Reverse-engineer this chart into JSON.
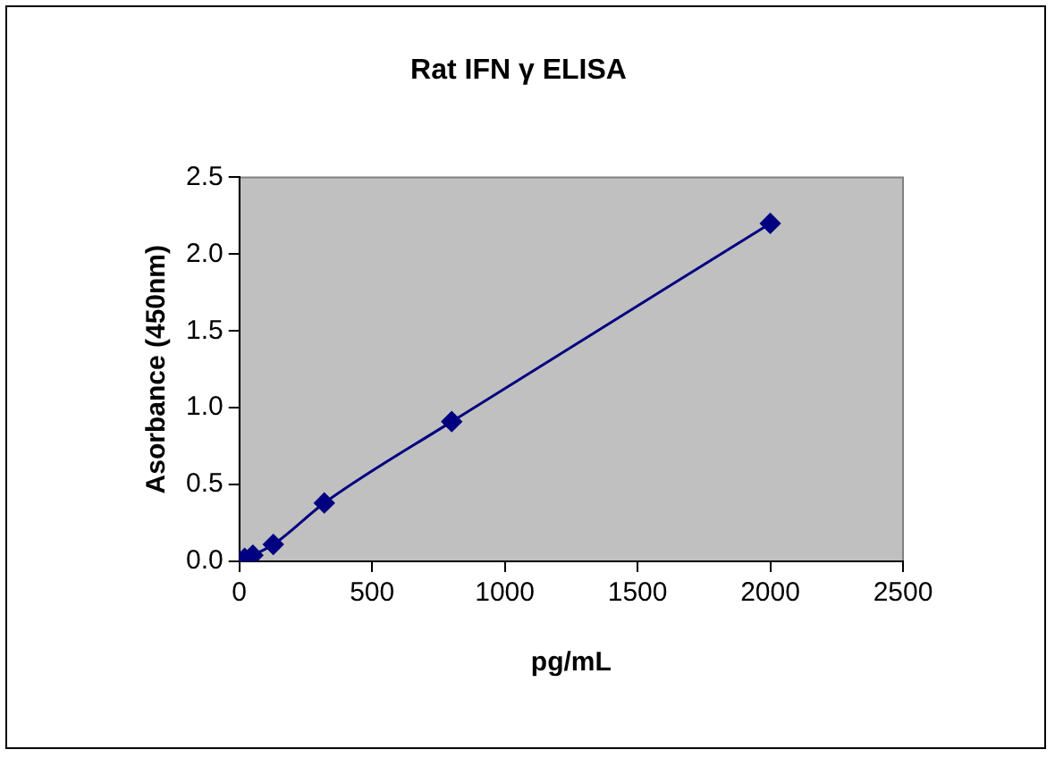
{
  "chart_data": {
    "type": "line",
    "title": "Rat IFN γ ELISA",
    "xlabel": "pg/mL",
    "ylabel": "Asorbance (450nm)",
    "x": [
      0,
      8,
      20,
      51,
      128,
      320,
      800,
      2000
    ],
    "series": [
      {
        "color": "#000080",
        "values": [
          0,
          null,
          0.02,
          0.04,
          0.11,
          0.38,
          0.91,
          2.2
        ]
      }
    ],
    "xlim": [
      0,
      2500
    ],
    "xticks": [
      0,
      500,
      1000,
      1500,
      2000,
      2500
    ],
    "ylim": [
      0,
      2.5
    ],
    "yticks": [
      {
        "value": 0,
        "label": "0.0"
      },
      {
        "value": 0.5,
        "label": "0.5"
      },
      {
        "value": 1,
        "label": "1.0"
      },
      {
        "value": 1.5,
        "label": "1.5"
      },
      {
        "value": 2,
        "label": "2.0"
      },
      {
        "value": 2.5,
        "label": "2.5"
      }
    ],
    "grid": false,
    "legend": false,
    "marker": "diamond",
    "line_style": "solid"
  }
}
